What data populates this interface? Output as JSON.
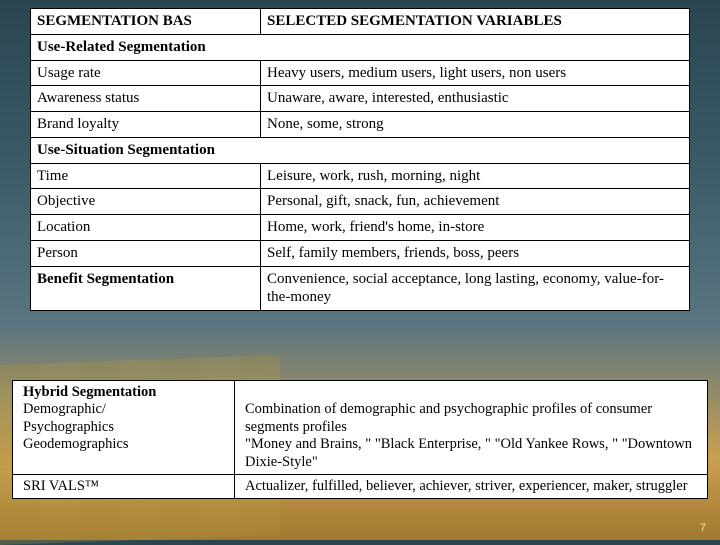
{
  "pageNumber": "7",
  "table1": {
    "header": {
      "col1": "SEGMENTATION BAS",
      "col2": "SELECTED SEGMENTATION VARIABLES"
    },
    "section1": {
      "title": "Use-Related Segmentation",
      "rows": [
        {
          "label": "Usage rate",
          "value": "Heavy users, medium users, light users, non users"
        },
        {
          "label": "Awareness status",
          "value": "Unaware, aware, interested, enthusiastic"
        },
        {
          "label": "Brand loyalty",
          "value": "None, some, strong"
        }
      ]
    },
    "section2": {
      "title": "Use-Situation Segmentation",
      "rows": [
        {
          "label": "Time",
          "value": "Leisure, work, rush, morning, night"
        },
        {
          "label": "Objective",
          "value": "Personal, gift, snack, fun, achievement"
        },
        {
          "label": "Location",
          "value": "Home, work, friend's home, in-store"
        },
        {
          "label": "Person",
          "value": "Self, family members, friends, boss, peers"
        }
      ]
    },
    "benefit": {
      "label": "Benefit Segmentation",
      "value": "Convenience, social acceptance, long lasting, economy, value-for-the-money"
    }
  },
  "table2": {
    "row1": {
      "col1_line1": "Hybrid Segmentation",
      "col1_line2": "Demographic/",
      "col1_line3": "Psychographics",
      "col1_line4": "Geodemographics",
      "col2_line1": "Combination of demographic and psychographic profiles of consumer segments profiles",
      "col2_line2": "\"Money and Brains, \" \"Black Enterprise, \" \"Old Yankee Rows, \" \"Downtown Dixie-Style\""
    },
    "row2": {
      "col1": "SRI VALS™",
      "col2": "Actualizer, fulfilled, believer, achiever, striver, experiencer, maker, struggler"
    }
  }
}
